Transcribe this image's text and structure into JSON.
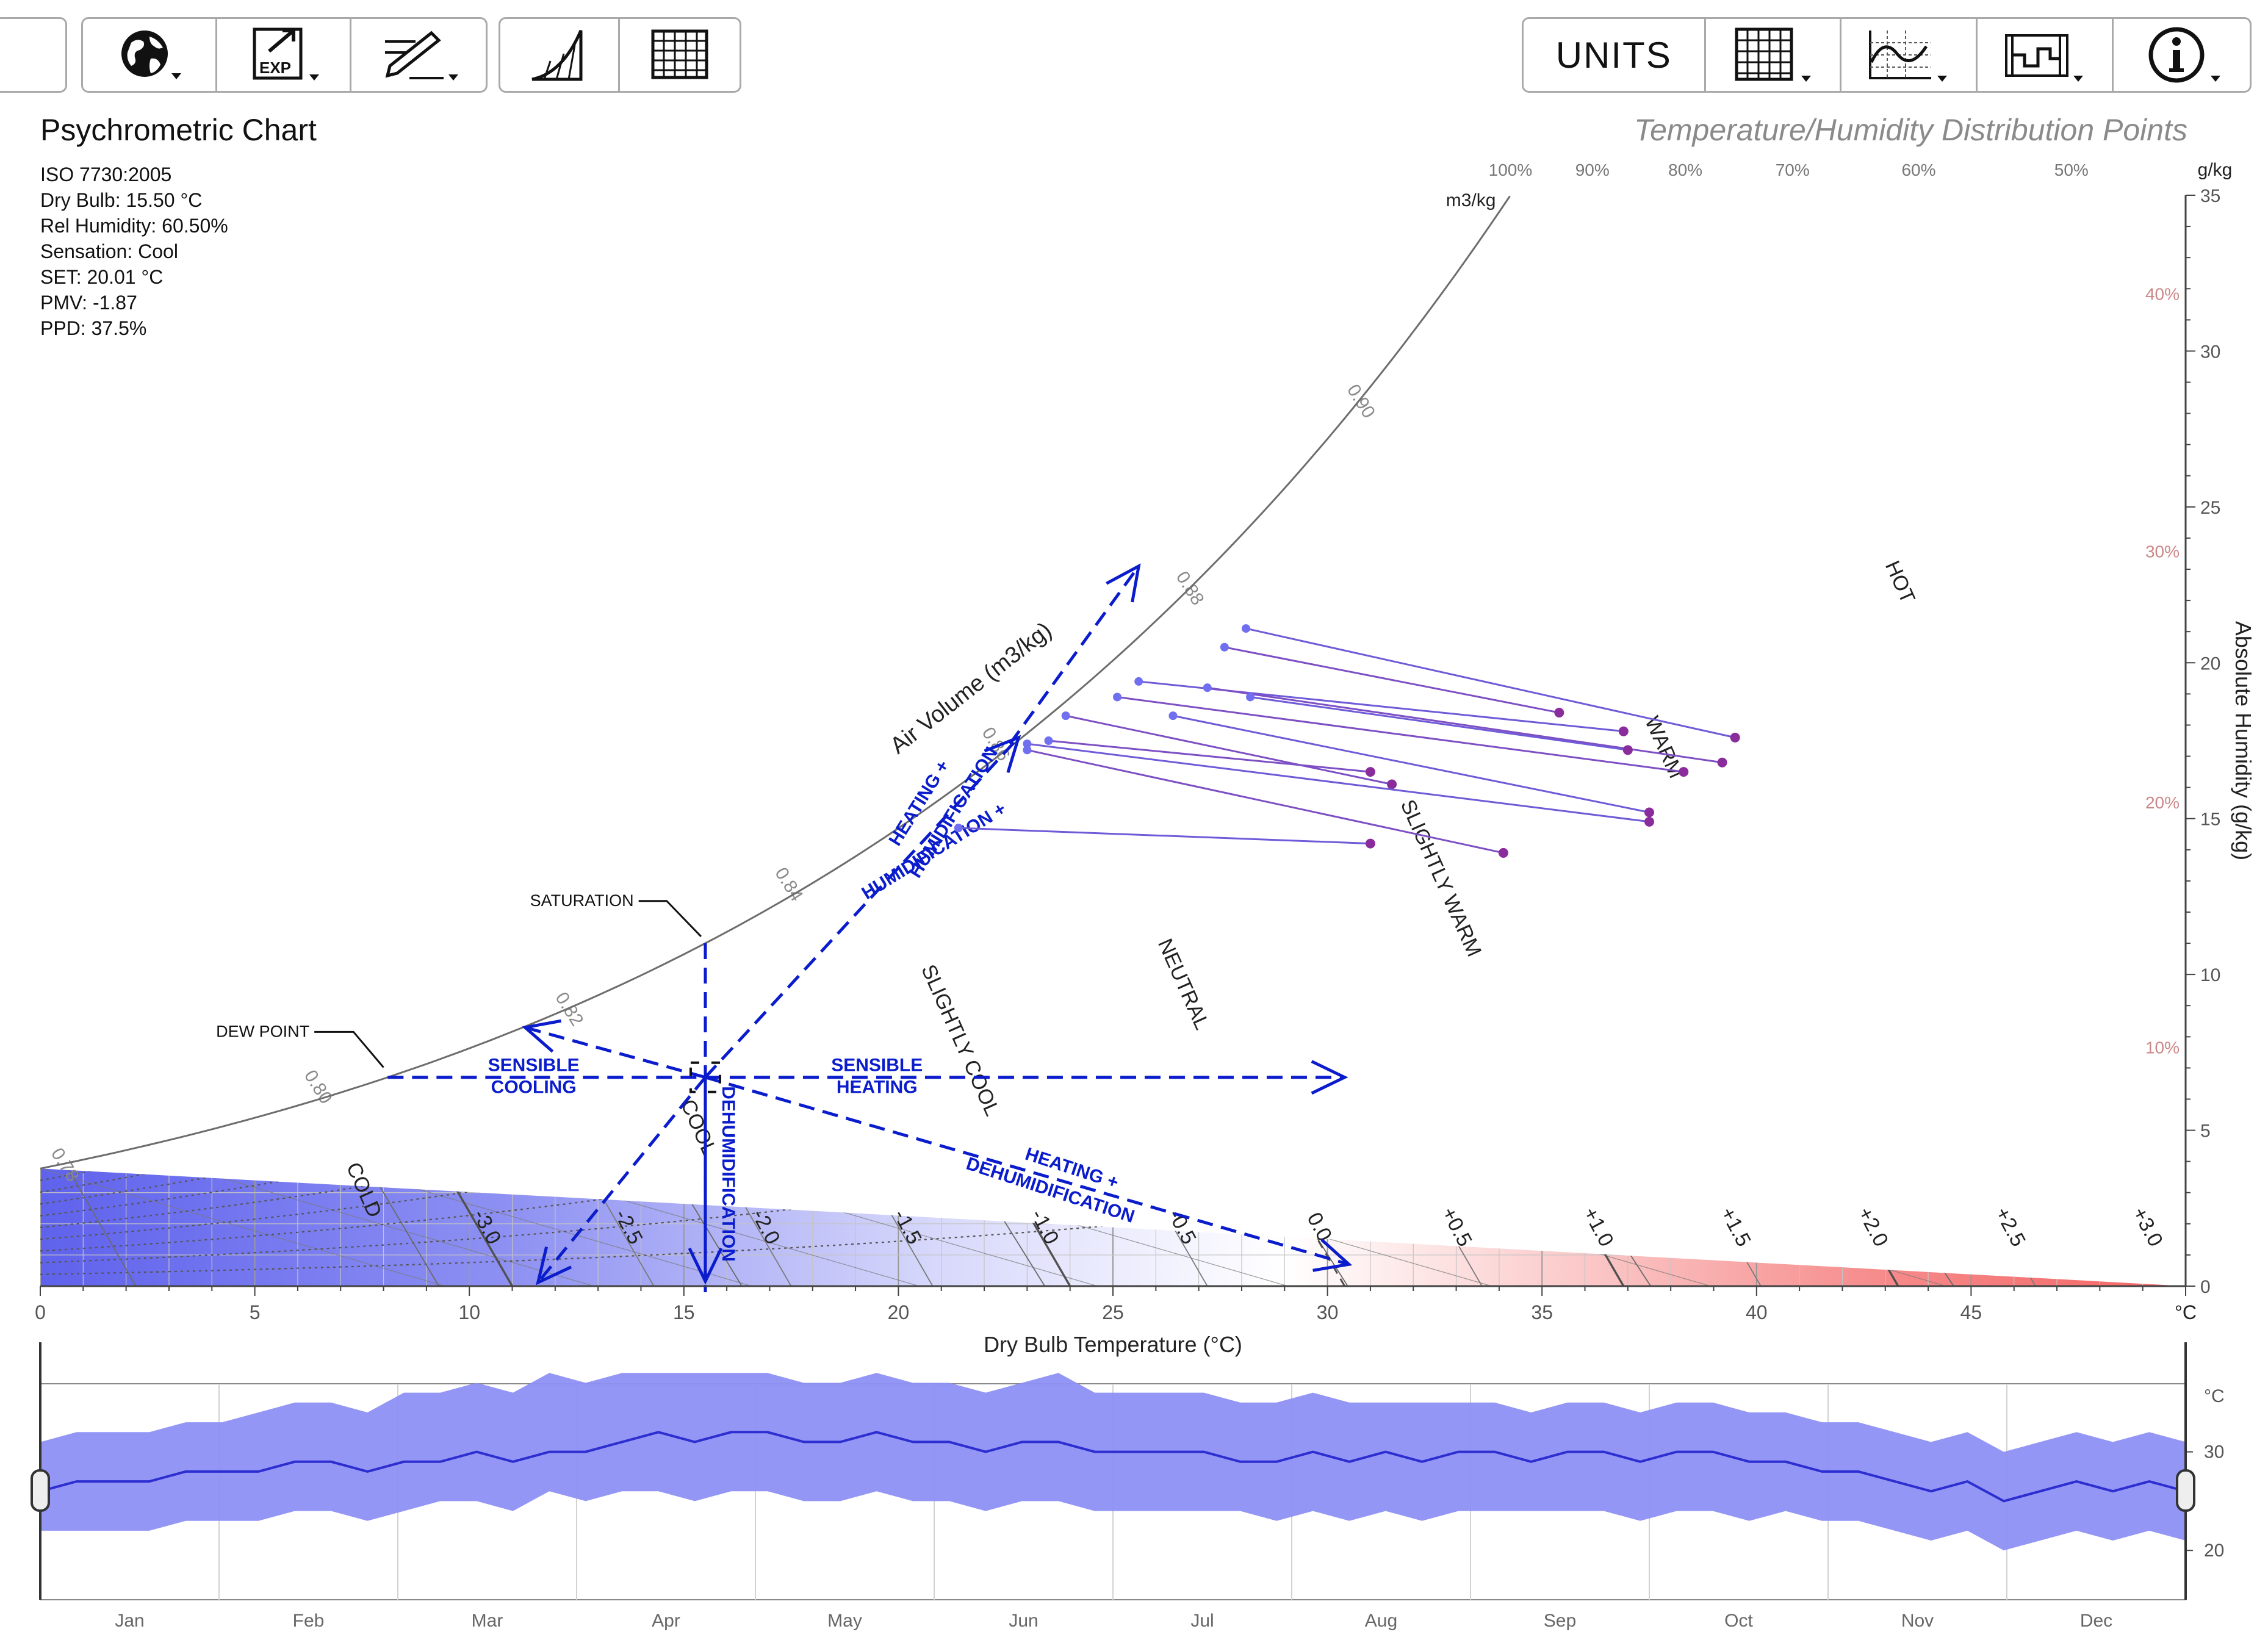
{
  "toolbar": {
    "left_buttons": [
      {
        "name": "location-globe-button",
        "icon": "globe-icon"
      },
      {
        "name": "export-button",
        "icon": "export-icon",
        "label": "EXP"
      },
      {
        "name": "edit-button",
        "icon": "pencil-edit-icon"
      },
      {
        "name": "chart-curve-button",
        "icon": "psychro-curve-icon"
      },
      {
        "name": "grid-button",
        "icon": "grid-icon"
      }
    ],
    "right_buttons": [
      {
        "name": "units-button",
        "label": "UNITS"
      },
      {
        "name": "grid-options-button",
        "icon": "grid-dropdown-icon"
      },
      {
        "name": "overlay-options-button",
        "icon": "wave-chart-icon"
      },
      {
        "name": "display-options-button",
        "icon": "range-chart-icon"
      },
      {
        "name": "info-button",
        "icon": "info-icon"
      }
    ]
  },
  "info": {
    "title": "Psychrometric Chart",
    "lines": [
      "ISO 7730:2005",
      "Dry Bulb: 15.50 °C",
      "Rel Humidity: 60.50%",
      "Sensation: Cool",
      "SET: 20.01 °C",
      "PMV: -1.87",
      "PPD: 37.5%"
    ]
  },
  "chart_data": [
    {
      "type": "scatter",
      "title": "Temperature/Humidity Distribution Points",
      "xlabel": "Dry Bulb Temperature (°C)",
      "ylabel": "Absolute Humidity (g/kg)",
      "x_unit": "°C",
      "y_unit": "g/kg",
      "volume_unit": "m3/kg",
      "xlim": [
        0,
        50
      ],
      "ylim": [
        0,
        35
      ],
      "x_ticks": [
        0,
        5,
        10,
        15,
        20,
        25,
        30,
        35,
        40,
        45
      ],
      "y_ticks": [
        0,
        5,
        10,
        15,
        20,
        25,
        30,
        35
      ],
      "rh_top_labels": [
        {
          "rh": 100,
          "label": "100%"
        },
        {
          "rh": 90,
          "label": "90%"
        },
        {
          "rh": 80,
          "label": "80%"
        },
        {
          "rh": 70,
          "label": "70%"
        },
        {
          "rh": 60,
          "label": "60%"
        },
        {
          "rh": 50,
          "label": "50%"
        }
      ],
      "rh_side_labels": [
        {
          "rh": 40,
          "label": "40%"
        },
        {
          "rh": 30,
          "label": "30%"
        },
        {
          "rh": 20,
          "label": "20%"
        },
        {
          "rh": 10,
          "label": "10%"
        }
      ],
      "volume_lines": [
        0.78,
        0.8,
        0.82,
        0.84,
        0.86,
        0.88,
        0.9
      ],
      "volume_labels": [
        "0.78",
        "0.80",
        "0.82",
        "0.84",
        "0.86",
        "0.88",
        "0.90"
      ],
      "pmv_lines": [
        {
          "value": -3.0,
          "label": "-3.0",
          "x0": 11,
          "slope": 0.42,
          "style": "solid"
        },
        {
          "value": -2.5,
          "label": "-2.5",
          "x0": 14.3,
          "slope": 0.42,
          "style": "thin"
        },
        {
          "value": -2.0,
          "label": "-2.0",
          "x0": 17.5,
          "slope": 0.42,
          "style": "thin"
        },
        {
          "value": -1.5,
          "label": "-1.5",
          "x0": 20.8,
          "slope": 0.42,
          "style": "thin"
        },
        {
          "value": -1.0,
          "label": "-1.0",
          "x0": 24,
          "slope": 0.42,
          "style": "solid"
        },
        {
          "value": -0.5,
          "label": "-0.5",
          "x0": 27.2,
          "slope": 0.42,
          "style": "thin"
        },
        {
          "value": 0.0,
          "label": "0.0",
          "x0": 30.4,
          "slope": 0.42,
          "style": "dashed"
        },
        {
          "value": 0.5,
          "label": "+0.5",
          "x0": 33.6,
          "slope": 0.42,
          "style": "thin"
        },
        {
          "value": 1.0,
          "label": "+1.0",
          "x0": 36.9,
          "slope": 0.42,
          "style": "solid"
        },
        {
          "value": 1.5,
          "label": "+1.5",
          "x0": 40.1,
          "slope": 0.42,
          "style": "thin"
        },
        {
          "value": 2.0,
          "label": "+2.0",
          "x0": 43.3,
          "slope": 0.42,
          "style": "solid"
        },
        {
          "value": 2.5,
          "label": "+2.5",
          "x0": 46.5,
          "slope": 0.42,
          "style": "thin"
        },
        {
          "value": 3.0,
          "label": "+3.0",
          "x0": 49.7,
          "slope": 0.42,
          "style": "solid"
        }
      ],
      "zones": [
        "COLD",
        "COOL",
        "SLIGHTLY COOL",
        "NEUTRAL",
        "SLIGHTLY WARM",
        "WARM",
        "HOT"
      ],
      "colors": {
        "cold": "#5f62ec",
        "neutral": "#ffffff",
        "hot": "#f46464",
        "process": "#0a1ccc",
        "points_start": "#6f6ff0",
        "points_end": "#8a2c9c"
      },
      "state_point": {
        "x": 15.5,
        "y": 6.7
      },
      "process_labels": {
        "saturation": "SATURATION",
        "dew_point": "DEW POINT",
        "air_volume": "Air Volume (m3/kg)",
        "sensible_cooling": [
          "SENSIBLE",
          "COOLING"
        ],
        "sensible_heating": [
          "SENSIBLE",
          "HEATING"
        ],
        "heating_humidification": [
          "HUMIDIFICATION +",
          "HEATING +",
          "HUMIDIFICATION"
        ],
        "heating_dehumidification": [
          "HEATING +",
          "DEHUMIDIFICATION"
        ],
        "dehumidification": "DEHUMIDIFICATION"
      },
      "distribution_segments": [
        {
          "x1": 28.1,
          "y1": 21.1,
          "x2": 39.5,
          "y2": 17.6
        },
        {
          "x1": 27.6,
          "y1": 20.5,
          "x2": 35.4,
          "y2": 18.4
        },
        {
          "x1": 25.6,
          "y1": 19.4,
          "x2": 36.9,
          "y2": 17.8
        },
        {
          "x1": 27.2,
          "y1": 19.2,
          "x2": 39.2,
          "y2": 16.8
        },
        {
          "x1": 28.2,
          "y1": 18.9,
          "x2": 37.0,
          "y2": 17.2
        },
        {
          "x1": 25.1,
          "y1": 18.9,
          "x2": 38.3,
          "y2": 16.5
        },
        {
          "x1": 26.4,
          "y1": 18.3,
          "x2": 37.5,
          "y2": 15.2
        },
        {
          "x1": 23.9,
          "y1": 18.3,
          "x2": 31.5,
          "y2": 16.1
        },
        {
          "x1": 23.0,
          "y1": 17.4,
          "x2": 37.5,
          "y2": 14.9
        },
        {
          "x1": 23.0,
          "y1": 17.2,
          "x2": 34.1,
          "y2": 13.9
        },
        {
          "x1": 21.4,
          "y1": 14.7,
          "x2": 31.0,
          "y2": 14.2
        },
        {
          "x1": 23.5,
          "y1": 17.5,
          "x2": 31.0,
          "y2": 16.5
        }
      ]
    },
    {
      "type": "area",
      "x_unit": "days",
      "y_unit": "°C",
      "ylim": [
        15,
        40
      ],
      "y_ticks": [
        20,
        30
      ],
      "months": [
        "Jan",
        "Feb",
        "Mar",
        "Apr",
        "May",
        "Jun",
        "Jul",
        "Aug",
        "Sep",
        "Oct",
        "Nov",
        "Dec"
      ],
      "series": [
        {
          "values": [
            26,
            27,
            27,
            27,
            28,
            28,
            28,
            29,
            29,
            28,
            29,
            29,
            30,
            29,
            30,
            30,
            31,
            32,
            31,
            32,
            32,
            31,
            31,
            32,
            31,
            31,
            30,
            31,
            31,
            30,
            30,
            30,
            30,
            29,
            29,
            30,
            29,
            30,
            29,
            30,
            30,
            29,
            30,
            30,
            29,
            30,
            30,
            29,
            29,
            28,
            28,
            27,
            26,
            27,
            25,
            26,
            27,
            26,
            27,
            26
          ]
        },
        {
          "values": [
            31,
            32,
            32,
            32,
            33,
            33,
            34,
            35,
            35,
            34,
            36,
            36,
            37,
            36,
            38,
            37,
            38,
            38,
            38,
            38,
            38,
            37,
            37,
            38,
            37,
            37,
            36,
            37,
            38,
            36,
            36,
            36,
            36,
            35,
            35,
            36,
            35,
            35,
            35,
            35,
            35,
            34,
            35,
            35,
            34,
            35,
            35,
            34,
            34,
            33,
            33,
            32,
            31,
            32,
            30,
            31,
            32,
            31,
            32,
            31
          ]
        },
        {
          "values": [
            22,
            22,
            22,
            22,
            23,
            23,
            23,
            24,
            24,
            23,
            24,
            25,
            25,
            24,
            26,
            25,
            26,
            26,
            25,
            26,
            26,
            25,
            25,
            26,
            25,
            25,
            24,
            25,
            25,
            24,
            24,
            24,
            24,
            24,
            23,
            24,
            23,
            24,
            23,
            24,
            24,
            24,
            24,
            24,
            23,
            24,
            24,
            23,
            24,
            23,
            23,
            22,
            21,
            22,
            20,
            21,
            22,
            21,
            22,
            21
          ]
        }
      ]
    }
  ]
}
